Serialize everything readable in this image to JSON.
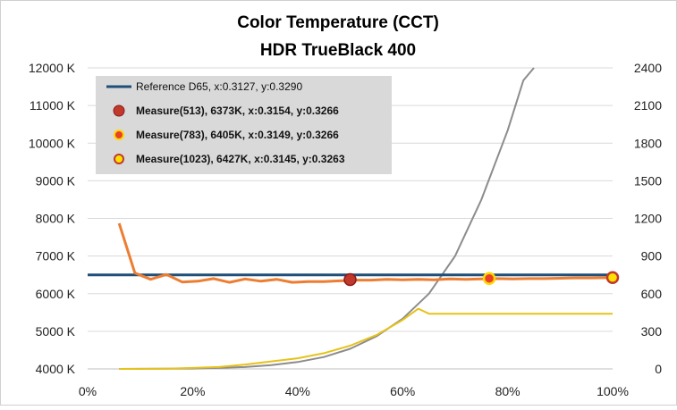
{
  "chart_data": {
    "type": "line",
    "title": "Color Temperature (CCT)",
    "subtitle": "HDR TrueBlack 400",
    "xlabel": "",
    "ylabel": "",
    "y2label": "",
    "x_ticks": [
      "0%",
      "20%",
      "40%",
      "60%",
      "80%",
      "100%"
    ],
    "xlim": [
      0,
      100
    ],
    "y_ticks": [
      "4000 K",
      "5000 K",
      "6000 K",
      "7000 K",
      "8000 K",
      "9000 K",
      "10000 K",
      "11000 K",
      "12000 K"
    ],
    "ylim": [
      4000,
      12000
    ],
    "y2_ticks": [
      "0",
      "300",
      "600",
      "900",
      "1200",
      "1500",
      "1800",
      "2100",
      "2400"
    ],
    "y2lim": [
      0,
      2400
    ],
    "grid": "horizontal",
    "legend_position": "top-left",
    "colors": {
      "cct": "#ED7D31",
      "reference": "#1F4E79",
      "gray_curve": "#8C8C8C",
      "yellow_curve": "#E6C21A",
      "measure_513": "#C0392B",
      "measure_783_fill": "#E8402A",
      "measure_1023_fill": "#FFE000",
      "marker_ring": "#FFD700"
    },
    "legend": [
      {
        "label": "Reference D65, x:0.3127, y:0.3290",
        "kind": "line"
      },
      {
        "label": "Measure(513), 6373K, x:0.3154, y:0.3266",
        "kind": "marker-513"
      },
      {
        "label": "Measure(783), 6405K, x:0.3149, y:0.3266",
        "kind": "marker-783"
      },
      {
        "label": "Measure(1023), 6427K, x:0.3145, y:0.3263",
        "kind": "marker-1023"
      }
    ],
    "reference": {
      "name": "Reference D65, x:0.3127, y:0.3290",
      "value": 6500
    },
    "series": [
      {
        "name": "",
        "axis": "left",
        "x": [
          6,
          9,
          12,
          15,
          18,
          21,
          24,
          27,
          30,
          33,
          36,
          39,
          42,
          45,
          48,
          51,
          54,
          57,
          60,
          63,
          66,
          69,
          72,
          75,
          78,
          81,
          84,
          87,
          90,
          93,
          96,
          100
        ],
        "values": [
          7870,
          6550,
          6380,
          6510,
          6310,
          6330,
          6400,
          6300,
          6390,
          6330,
          6380,
          6300,
          6320,
          6320,
          6340,
          6360,
          6360,
          6380,
          6370,
          6380,
          6370,
          6390,
          6380,
          6390,
          6400,
          6390,
          6400,
          6400,
          6410,
          6420,
          6420,
          6427
        ]
      },
      {
        "name": "",
        "axis": "right",
        "x": [
          6,
          20,
          30,
          35,
          40,
          45,
          50,
          55,
          60,
          65,
          70,
          75,
          80,
          83,
          85
        ],
        "values": [
          0,
          3,
          15,
          30,
          55,
          95,
          160,
          260,
          400,
          600,
          900,
          1350,
          1900,
          2300,
          2400
        ]
      },
      {
        "name": "",
        "axis": "right",
        "x": [
          6,
          15,
          20,
          25,
          30,
          35,
          40,
          45,
          50,
          55,
          60,
          63,
          65,
          70,
          80,
          90,
          100
        ],
        "values": [
          0,
          2,
          8,
          15,
          35,
          60,
          85,
          125,
          185,
          270,
          390,
          480,
          440,
          440,
          440,
          440,
          440
        ]
      }
    ],
    "measures": [
      {
        "name": "Measure(513)",
        "x": 50,
        "value": 6373
      },
      {
        "name": "Measure(783)",
        "x": 76.5,
        "value": 6405
      },
      {
        "name": "Measure(1023)",
        "x": 100,
        "value": 6427
      }
    ]
  }
}
